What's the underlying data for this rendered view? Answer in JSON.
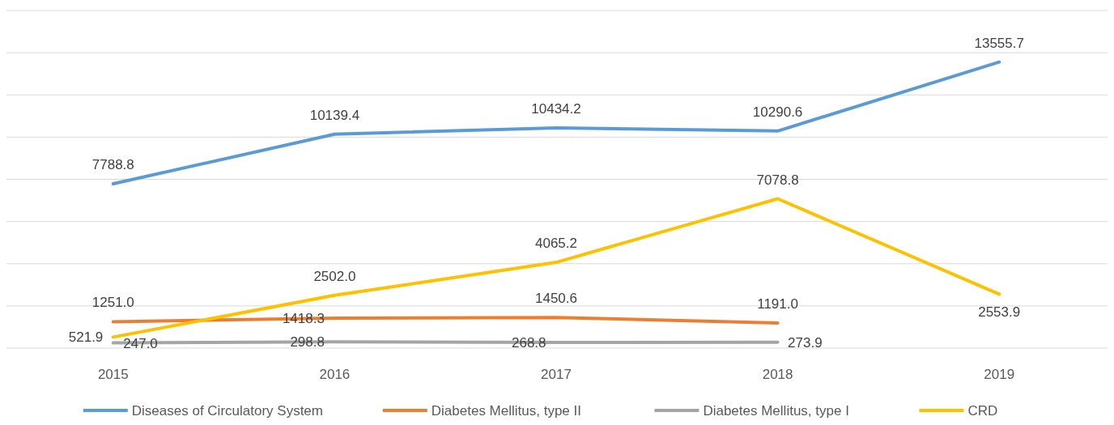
{
  "chart_data": {
    "type": "line",
    "categories": [
      "2015",
      "2016",
      "2017",
      "2018",
      "2019"
    ],
    "series": [
      {
        "name": "Diseases of Circulatory System",
        "color": "#5b9bd5",
        "values": [
          7788.8,
          10139.4,
          10434.2,
          10290.6,
          13555.7
        ],
        "value_labels": [
          "7788.8",
          "10139.4",
          "10434.2",
          "10290.6",
          "13555.7"
        ]
      },
      {
        "name": "Diabetes Mellitus, type II",
        "color": "#ed7d31",
        "values": [
          1251.0,
          1418.3,
          1450.6,
          1191.0,
          null
        ],
        "value_labels": [
          "1251.0",
          "1418.3",
          "1450.6",
          "1191.0",
          null
        ]
      },
      {
        "name": "Diabetes Mellitus, type I",
        "color": "#a5a5a5",
        "values": [
          247.0,
          298.8,
          268.8,
          273.9,
          null
        ],
        "value_labels": [
          "247.0",
          "298.8",
          "268.8",
          "273.9",
          null
        ]
      },
      {
        "name": "CRD",
        "color": "#ffc000",
        "values": [
          521.9,
          2502.0,
          4065.2,
          7078.8,
          2553.9
        ],
        "value_labels": [
          "521.9",
          "2502.0",
          "4065.2",
          "7078.8",
          "2553.9"
        ]
      }
    ],
    "ylim": [
      0,
      16000
    ],
    "yticks": [
      {
        "value": 0,
        "label": null
      },
      {
        "value": 2000,
        "label": null
      },
      {
        "value": 4000,
        "label": null
      },
      {
        "value": 6000,
        "label": null
      },
      {
        "value": 8000,
        "label": null
      },
      {
        "value": 10000,
        "label": null
      },
      {
        "value": 12000,
        "label": null
      },
      {
        "value": 14000,
        "label": null
      },
      {
        "value": 16000,
        "label": null
      }
    ],
    "tick_labels": "x",
    "grid": "y",
    "legend": "bottom",
    "marker": "none",
    "line_style": "solid"
  }
}
